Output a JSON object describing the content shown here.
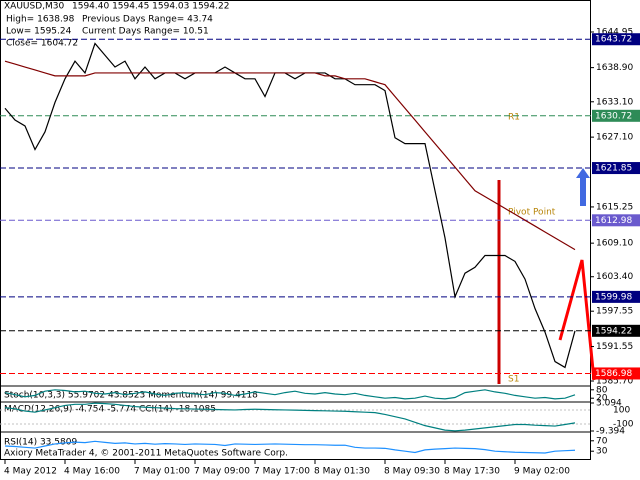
{
  "chart_data": [
    {
      "type": "line",
      "title": "XAUUSD,M30",
      "quote": "1594.40 1594.45 1594.03 1594.22",
      "info": [
        "High= 1638.98",
        "Previous Days Range= 43.74",
        "Low= 1595.24",
        "Current Days Range= 10.51",
        "Close= 1604.72"
      ],
      "categories": [
        "4 May 2012",
        null,
        null,
        null,
        null,
        null,
        "4 May 16:00",
        null,
        null,
        null,
        null,
        null,
        null,
        "7 May 01:00",
        null,
        null,
        null,
        null,
        null,
        "7 May 09:00",
        null,
        null,
        null,
        null,
        null,
        "7 May 17:00",
        null,
        null,
        null,
        null,
        null,
        "8 May 01:30",
        null,
        null,
        null,
        null,
        null,
        null,
        "8 May 09:30",
        null,
        null,
        null,
        null,
        null,
        "8 May 17:30",
        null,
        null,
        null,
        null,
        null,
        null,
        "9 May 02:00",
        null,
        null,
        null,
        null,
        null,
        null
      ],
      "series": [
        {
          "color": "#000000",
          "values": [
            1632,
            1630,
            1629,
            1625,
            1628,
            1633,
            1637,
            1640,
            1638,
            1643,
            1641,
            1639,
            1640,
            1637,
            1639,
            1637,
            1638,
            1638,
            1637,
            1638,
            1638,
            1638,
            1639,
            1638,
            1637,
            1637,
            1634,
            1638,
            1638,
            1637,
            1638,
            1638,
            1638,
            1637,
            1637,
            1636,
            1636,
            1636,
            1635,
            1627,
            1626,
            1626,
            1626,
            1618,
            1610,
            1600,
            1604,
            1605,
            1607,
            1607,
            1607,
            1606,
            1603,
            1598,
            1594,
            1589,
            1588,
            1594.22
          ]
        },
        {
          "color": "#800000",
          "values": [
            1640,
            1639.5,
            1639,
            1638.5,
            1638,
            1637.5,
            1637.5,
            1637.5,
            1637.5,
            1638,
            1638,
            1638,
            1638,
            1638,
            1638,
            1638,
            1638,
            1638,
            1638,
            1638,
            1638,
            1638,
            1638,
            1638,
            1638,
            1638,
            1638,
            1638,
            1638,
            1638,
            1638,
            1638,
            1637.5,
            1637.5,
            1637,
            1637,
            1637,
            1636.5,
            1636,
            1634,
            1632,
            1630,
            1628,
            1626,
            1624,
            1622,
            1620,
            1618,
            1617,
            1616,
            1615,
            1614,
            1613,
            1612,
            1611,
            1610,
            1609,
            1608
          ]
        }
      ],
      "ylim": [
        1585.02,
        1650.38
      ],
      "yticks": [
        1644.95,
        {
          "value": 1638.9,
          "label": "1638.90"
        },
        {
          "value": 1633.1,
          "label": "1633.10"
        },
        {
          "value": 1627.1,
          "label": "1627.10"
        },
        1615.25,
        {
          "value": 1609.1,
          "label": "1609.10"
        },
        {
          "value": 1603.4,
          "label": "1603.40"
        },
        1597.55,
        1591.55,
        {
          "value": 1585.7,
          "label": "1585.70"
        }
      ],
      "levels": [
        {
          "value": 1643.72,
          "color": "#000080"
        },
        {
          "value": 1630.72,
          "color": "#2e8b57"
        },
        {
          "value": 1621.85,
          "color": "#000080"
        },
        {
          "value": 1612.98,
          "color": "#6a5acd"
        },
        {
          "value": 1599.98,
          "color": "#000080"
        },
        {
          "value": 1594.22,
          "color": "#000000"
        },
        {
          "value": 1586.98,
          "color": "#ff0000"
        }
      ],
      "annotations": [
        "R1",
        "Pivot Point",
        "S1"
      ]
    },
    {
      "type": "line",
      "title": "Stoch(10,3,3) 55.9702 43.8523  Momentum(14) 99.4118",
      "color": "#008080",
      "values": [
        60,
        45,
        30,
        40,
        70,
        80,
        75,
        65,
        70,
        55,
        50,
        60,
        45,
        55,
        65,
        50,
        40,
        55,
        60,
        50,
        45,
        60,
        55,
        40,
        50,
        65,
        55,
        45,
        60,
        70,
        55,
        50,
        60,
        50,
        45,
        55,
        40,
        30,
        20,
        25,
        15,
        20,
        35,
        20,
        15,
        25,
        60,
        70,
        80,
        65,
        55,
        40,
        30,
        20,
        25,
        15,
        20,
        44
      ],
      "ylim": [
        0,
        100
      ],
      "yticks": [
        80,
        20
      ]
    },
    {
      "type": "line",
      "title": "MACD(12,26,9) -4.754 -5.774  CCI(14) -18.1085",
      "color": "#008080",
      "values": [
        1,
        0.5,
        -0.5,
        -1,
        0,
        1,
        2,
        2.5,
        2.5,
        3,
        2.8,
        2.5,
        2,
        1.5,
        1.2,
        1,
        0.8,
        0.6,
        0.5,
        0.4,
        0.3,
        0.2,
        0.1,
        0,
        0.2,
        0.3,
        0.2,
        0.1,
        0,
        -0.1,
        -0.2,
        -0.3,
        -0.4,
        -0.5,
        -0.6,
        -0.8,
        -1,
        -1.2,
        -2,
        -3,
        -4,
        -5.5,
        -7,
        -8,
        -9,
        -9.3,
        -9,
        -8.5,
        -8,
        -7.5,
        -7,
        -6.5,
        -6.5,
        -6.8,
        -7,
        -7.2,
        -6.5,
        -5.774
      ],
      "ylim": [
        -9.394,
        3.094
      ],
      "yticks": [
        3.094,
        -9.394
      ],
      "y2lim": [
        -200,
        200
      ],
      "y2ticks": [
        100,
        -100
      ]
    },
    {
      "type": "line",
      "title": "RSI(14) 33.5809",
      "color": "#1e90ff",
      "values": [
        50,
        48,
        45,
        42,
        50,
        58,
        62,
        65,
        63,
        68,
        64,
        60,
        62,
        58,
        60,
        57,
        59,
        58,
        56,
        58,
        57,
        56,
        52,
        58,
        57,
        56,
        57,
        58,
        57,
        56,
        55,
        55,
        54,
        53,
        53,
        45,
        42,
        42,
        41,
        35,
        30,
        25,
        35,
        38,
        40,
        42,
        41,
        40,
        36,
        30,
        28,
        26,
        25,
        24,
        23,
        30,
        32,
        33.5809
      ],
      "ylim": [
        0,
        100
      ],
      "yticks": [
        70,
        30
      ],
      "annotation": "Axiory MetaTrader 4, © 2001-2011 MetaQuotes Software Corp."
    }
  ]
}
